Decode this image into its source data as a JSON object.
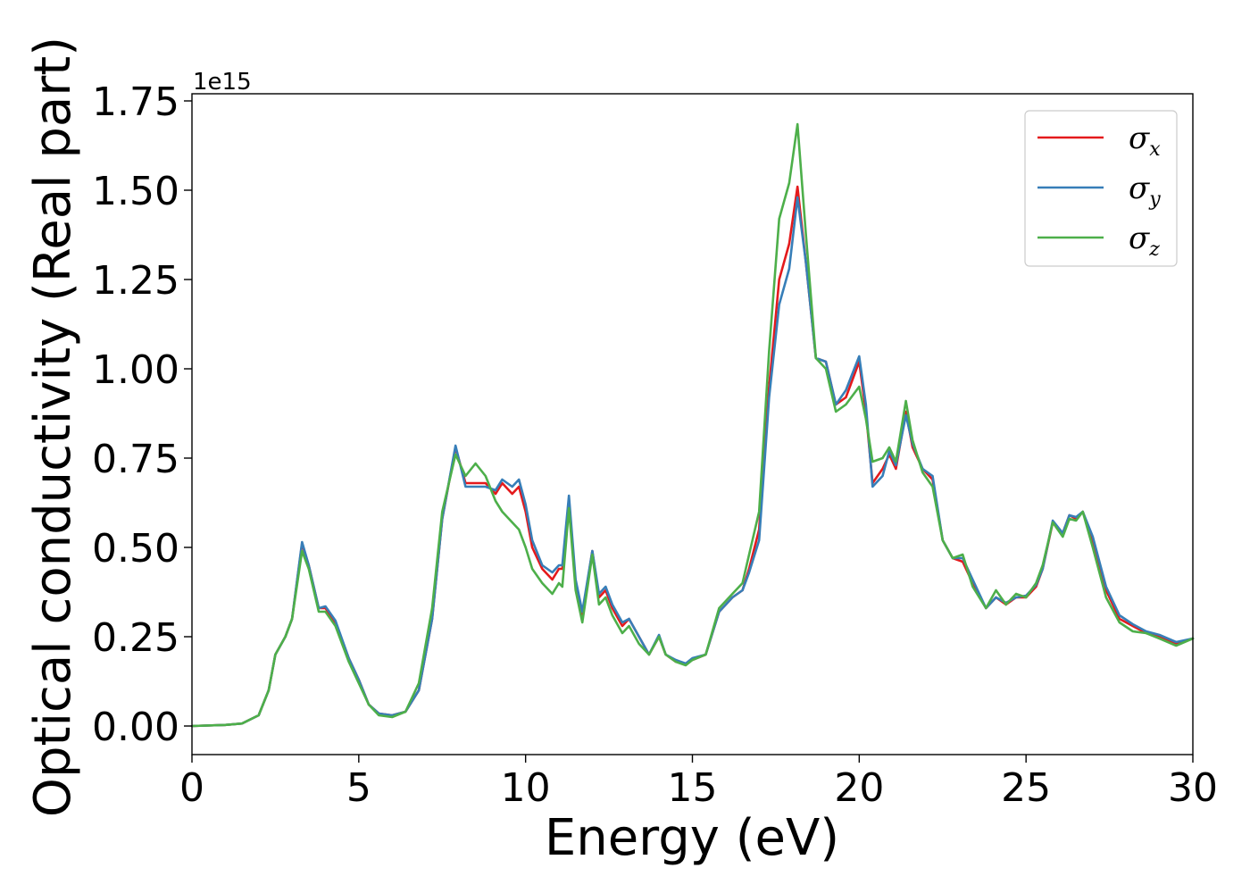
{
  "chart_data": {
    "type": "line",
    "xlabel": "Energy (eV)",
    "ylabel": "Optical conductivity (Real part)",
    "y_offset_text": "1e15",
    "xlim": [
      0,
      30
    ],
    "ylim": [
      -0.08,
      1.77
    ],
    "y_scale_multiplier": 1000000000000000.0,
    "xticks": [
      0,
      5,
      10,
      15,
      20,
      25,
      30
    ],
    "xtick_labels": [
      "0",
      "5",
      "10",
      "15",
      "20",
      "25",
      "30"
    ],
    "yticks": [
      0.0,
      0.25,
      0.5,
      0.75,
      1.0,
      1.25,
      1.5,
      1.75
    ],
    "ytick_labels": [
      "0.00",
      "0.25",
      "0.50",
      "0.75",
      "1.00",
      "1.25",
      "1.50",
      "1.75"
    ],
    "grid": false,
    "legend_position": "top-right",
    "series": [
      {
        "name": "σx",
        "symbol": "σ",
        "subscript": "x",
        "color": "#e41a1c",
        "points": [
          [
            0,
            0
          ],
          [
            1,
            0.003
          ],
          [
            1.5,
            0.007
          ],
          [
            2,
            0.03
          ],
          [
            2.3,
            0.1
          ],
          [
            2.5,
            0.2
          ],
          [
            2.8,
            0.25
          ],
          [
            3,
            0.3
          ],
          [
            3.3,
            0.51
          ],
          [
            3.5,
            0.45
          ],
          [
            3.8,
            0.33
          ],
          [
            4,
            0.33
          ],
          [
            4.3,
            0.29
          ],
          [
            4.7,
            0.19
          ],
          [
            5,
            0.13
          ],
          [
            5.3,
            0.06
          ],
          [
            5.6,
            0.035
          ],
          [
            6,
            0.03
          ],
          [
            6.4,
            0.04
          ],
          [
            6.8,
            0.1
          ],
          [
            7.2,
            0.3
          ],
          [
            7.5,
            0.58
          ],
          [
            7.9,
            0.78
          ],
          [
            8.2,
            0.68
          ],
          [
            8.5,
            0.68
          ],
          [
            8.8,
            0.68
          ],
          [
            9.1,
            0.65
          ],
          [
            9.3,
            0.68
          ],
          [
            9.6,
            0.65
          ],
          [
            9.8,
            0.67
          ],
          [
            10,
            0.6
          ],
          [
            10.2,
            0.5
          ],
          [
            10.5,
            0.44
          ],
          [
            10.8,
            0.41
          ],
          [
            11,
            0.44
          ],
          [
            11.1,
            0.44
          ],
          [
            11.3,
            0.63
          ],
          [
            11.5,
            0.4
          ],
          [
            11.7,
            0.31
          ],
          [
            12,
            0.49
          ],
          [
            12.2,
            0.36
          ],
          [
            12.4,
            0.38
          ],
          [
            12.6,
            0.33
          ],
          [
            12.9,
            0.28
          ],
          [
            13.1,
            0.3
          ],
          [
            13.4,
            0.25
          ],
          [
            13.7,
            0.2
          ],
          [
            14,
            0.25
          ],
          [
            14.2,
            0.2
          ],
          [
            14.5,
            0.18
          ],
          [
            14.8,
            0.175
          ],
          [
            15,
            0.185
          ],
          [
            15.4,
            0.2
          ],
          [
            15.8,
            0.32
          ],
          [
            16,
            0.34
          ],
          [
            16.2,
            0.36
          ],
          [
            16.5,
            0.38
          ],
          [
            16.7,
            0.44
          ],
          [
            17,
            0.55
          ],
          [
            17.3,
            0.95
          ],
          [
            17.6,
            1.25
          ],
          [
            17.9,
            1.35
          ],
          [
            18.15,
            1.51
          ],
          [
            18.4,
            1.3
          ],
          [
            18.7,
            1.03
          ],
          [
            19,
            1.02
          ],
          [
            19.3,
            0.9
          ],
          [
            19.6,
            0.92
          ],
          [
            20,
            1.02
          ],
          [
            20.2,
            0.88
          ],
          [
            20.4,
            0.68
          ],
          [
            20.7,
            0.72
          ],
          [
            20.9,
            0.76
          ],
          [
            21.1,
            0.72
          ],
          [
            21.4,
            0.88
          ],
          [
            21.6,
            0.78
          ],
          [
            21.9,
            0.72
          ],
          [
            22.2,
            0.69
          ],
          [
            22.5,
            0.52
          ],
          [
            22.8,
            0.47
          ],
          [
            23.1,
            0.46
          ],
          [
            23.4,
            0.4
          ],
          [
            23.8,
            0.33
          ],
          [
            24.1,
            0.36
          ],
          [
            24.4,
            0.34
          ],
          [
            24.7,
            0.36
          ],
          [
            25,
            0.36
          ],
          [
            25.3,
            0.39
          ],
          [
            25.5,
            0.44
          ],
          [
            25.8,
            0.57
          ],
          [
            26.1,
            0.54
          ],
          [
            26.3,
            0.59
          ],
          [
            26.5,
            0.58
          ],
          [
            26.7,
            0.6
          ],
          [
            27,
            0.52
          ],
          [
            27.4,
            0.38
          ],
          [
            27.8,
            0.3
          ],
          [
            28.2,
            0.28
          ],
          [
            28.6,
            0.26
          ],
          [
            29,
            0.25
          ],
          [
            29.5,
            0.23
          ],
          [
            30,
            0.245
          ]
        ]
      },
      {
        "name": "σy",
        "symbol": "σ",
        "subscript": "y",
        "color": "#377eb8",
        "points": [
          [
            0,
            0
          ],
          [
            1,
            0.003
          ],
          [
            1.5,
            0.007
          ],
          [
            2,
            0.03
          ],
          [
            2.3,
            0.1
          ],
          [
            2.5,
            0.2
          ],
          [
            2.8,
            0.25
          ],
          [
            3,
            0.3
          ],
          [
            3.3,
            0.515
          ],
          [
            3.5,
            0.45
          ],
          [
            3.8,
            0.33
          ],
          [
            4,
            0.335
          ],
          [
            4.3,
            0.295
          ],
          [
            4.7,
            0.19
          ],
          [
            5,
            0.13
          ],
          [
            5.3,
            0.06
          ],
          [
            5.6,
            0.035
          ],
          [
            6,
            0.03
          ],
          [
            6.4,
            0.04
          ],
          [
            6.8,
            0.1
          ],
          [
            7.2,
            0.3
          ],
          [
            7.5,
            0.58
          ],
          [
            7.9,
            0.785
          ],
          [
            8.2,
            0.67
          ],
          [
            8.5,
            0.67
          ],
          [
            8.8,
            0.67
          ],
          [
            9.1,
            0.66
          ],
          [
            9.3,
            0.69
          ],
          [
            9.6,
            0.67
          ],
          [
            9.8,
            0.69
          ],
          [
            10,
            0.62
          ],
          [
            10.2,
            0.52
          ],
          [
            10.5,
            0.45
          ],
          [
            10.8,
            0.43
          ],
          [
            11,
            0.45
          ],
          [
            11.1,
            0.45
          ],
          [
            11.3,
            0.645
          ],
          [
            11.5,
            0.41
          ],
          [
            11.7,
            0.32
          ],
          [
            12,
            0.49
          ],
          [
            12.2,
            0.37
          ],
          [
            12.4,
            0.39
          ],
          [
            12.6,
            0.34
          ],
          [
            12.9,
            0.29
          ],
          [
            13.1,
            0.3
          ],
          [
            13.4,
            0.25
          ],
          [
            13.7,
            0.2
          ],
          [
            14,
            0.255
          ],
          [
            14.2,
            0.2
          ],
          [
            14.5,
            0.185
          ],
          [
            14.8,
            0.175
          ],
          [
            15,
            0.19
          ],
          [
            15.4,
            0.2
          ],
          [
            15.8,
            0.32
          ],
          [
            16,
            0.34
          ],
          [
            16.2,
            0.36
          ],
          [
            16.5,
            0.38
          ],
          [
            16.7,
            0.43
          ],
          [
            17,
            0.52
          ],
          [
            17.3,
            0.92
          ],
          [
            17.6,
            1.18
          ],
          [
            17.9,
            1.28
          ],
          [
            18.15,
            1.48
          ],
          [
            18.4,
            1.3
          ],
          [
            18.7,
            1.03
          ],
          [
            19,
            1.02
          ],
          [
            19.3,
            0.9
          ],
          [
            19.6,
            0.94
          ],
          [
            20,
            1.035
          ],
          [
            20.2,
            0.9
          ],
          [
            20.4,
            0.67
          ],
          [
            20.7,
            0.7
          ],
          [
            20.9,
            0.77
          ],
          [
            21.1,
            0.73
          ],
          [
            21.4,
            0.87
          ],
          [
            21.6,
            0.79
          ],
          [
            21.9,
            0.72
          ],
          [
            22.2,
            0.7
          ],
          [
            22.5,
            0.52
          ],
          [
            22.8,
            0.47
          ],
          [
            23.1,
            0.47
          ],
          [
            23.4,
            0.41
          ],
          [
            23.8,
            0.33
          ],
          [
            24.1,
            0.36
          ],
          [
            24.4,
            0.345
          ],
          [
            24.7,
            0.36
          ],
          [
            25,
            0.365
          ],
          [
            25.3,
            0.395
          ],
          [
            25.5,
            0.44
          ],
          [
            25.8,
            0.575
          ],
          [
            26.1,
            0.54
          ],
          [
            26.3,
            0.59
          ],
          [
            26.5,
            0.585
          ],
          [
            26.7,
            0.6
          ],
          [
            27,
            0.53
          ],
          [
            27.4,
            0.39
          ],
          [
            27.8,
            0.31
          ],
          [
            28.2,
            0.285
          ],
          [
            28.6,
            0.265
          ],
          [
            29,
            0.255
          ],
          [
            29.5,
            0.235
          ],
          [
            30,
            0.245
          ]
        ]
      },
      {
        "name": "σz",
        "symbol": "σ",
        "subscript": "z",
        "color": "#4daf4a",
        "points": [
          [
            0,
            0
          ],
          [
            1,
            0.003
          ],
          [
            1.5,
            0.007
          ],
          [
            2,
            0.03
          ],
          [
            2.3,
            0.1
          ],
          [
            2.5,
            0.2
          ],
          [
            2.8,
            0.25
          ],
          [
            3,
            0.3
          ],
          [
            3.3,
            0.49
          ],
          [
            3.5,
            0.44
          ],
          [
            3.8,
            0.32
          ],
          [
            4,
            0.32
          ],
          [
            4.3,
            0.28
          ],
          [
            4.7,
            0.18
          ],
          [
            5,
            0.12
          ],
          [
            5.3,
            0.06
          ],
          [
            5.6,
            0.03
          ],
          [
            6,
            0.025
          ],
          [
            6.4,
            0.04
          ],
          [
            6.8,
            0.12
          ],
          [
            7.2,
            0.33
          ],
          [
            7.5,
            0.6
          ],
          [
            7.9,
            0.76
          ],
          [
            8.2,
            0.7
          ],
          [
            8.5,
            0.735
          ],
          [
            8.8,
            0.7
          ],
          [
            9.1,
            0.63
          ],
          [
            9.3,
            0.6
          ],
          [
            9.6,
            0.57
          ],
          [
            9.8,
            0.55
          ],
          [
            10,
            0.5
          ],
          [
            10.2,
            0.44
          ],
          [
            10.5,
            0.4
          ],
          [
            10.8,
            0.37
          ],
          [
            11,
            0.4
          ],
          [
            11.1,
            0.39
          ],
          [
            11.3,
            0.61
          ],
          [
            11.5,
            0.38
          ],
          [
            11.7,
            0.29
          ],
          [
            12,
            0.48
          ],
          [
            12.2,
            0.34
          ],
          [
            12.4,
            0.36
          ],
          [
            12.6,
            0.31
          ],
          [
            12.9,
            0.26
          ],
          [
            13.1,
            0.28
          ],
          [
            13.4,
            0.23
          ],
          [
            13.7,
            0.2
          ],
          [
            14,
            0.25
          ],
          [
            14.2,
            0.2
          ],
          [
            14.5,
            0.18
          ],
          [
            14.8,
            0.17
          ],
          [
            15,
            0.185
          ],
          [
            15.4,
            0.2
          ],
          [
            15.8,
            0.33
          ],
          [
            16,
            0.35
          ],
          [
            16.2,
            0.37
          ],
          [
            16.5,
            0.4
          ],
          [
            16.7,
            0.48
          ],
          [
            17,
            0.6
          ],
          [
            17.3,
            1.05
          ],
          [
            17.6,
            1.42
          ],
          [
            17.9,
            1.52
          ],
          [
            18.15,
            1.685
          ],
          [
            18.4,
            1.38
          ],
          [
            18.7,
            1.03
          ],
          [
            19,
            1.0
          ],
          [
            19.3,
            0.88
          ],
          [
            19.6,
            0.9
          ],
          [
            20,
            0.95
          ],
          [
            20.2,
            0.86
          ],
          [
            20.4,
            0.74
          ],
          [
            20.7,
            0.75
          ],
          [
            20.9,
            0.78
          ],
          [
            21.1,
            0.74
          ],
          [
            21.4,
            0.91
          ],
          [
            21.6,
            0.8
          ],
          [
            21.9,
            0.71
          ],
          [
            22.2,
            0.67
          ],
          [
            22.5,
            0.52
          ],
          [
            22.8,
            0.47
          ],
          [
            23.1,
            0.48
          ],
          [
            23.4,
            0.39
          ],
          [
            23.8,
            0.33
          ],
          [
            24.1,
            0.38
          ],
          [
            24.4,
            0.34
          ],
          [
            24.7,
            0.37
          ],
          [
            25,
            0.36
          ],
          [
            25.3,
            0.4
          ],
          [
            25.5,
            0.45
          ],
          [
            25.8,
            0.57
          ],
          [
            26.1,
            0.53
          ],
          [
            26.3,
            0.58
          ],
          [
            26.5,
            0.575
          ],
          [
            26.7,
            0.6
          ],
          [
            27,
            0.5
          ],
          [
            27.4,
            0.36
          ],
          [
            27.8,
            0.29
          ],
          [
            28.2,
            0.265
          ],
          [
            28.6,
            0.26
          ],
          [
            29,
            0.245
          ],
          [
            29.5,
            0.225
          ],
          [
            30,
            0.245
          ]
        ]
      }
    ]
  }
}
